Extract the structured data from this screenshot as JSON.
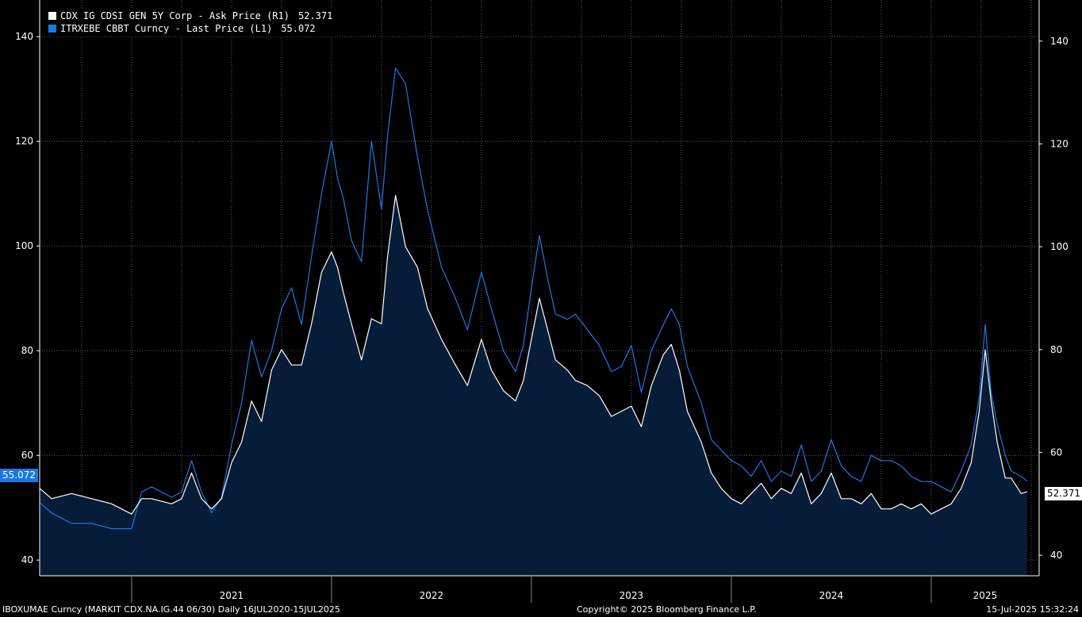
{
  "legend": [
    {
      "label": "CDX IG CDSI GEN 5Y Corp - Ask Price (R1)",
      "value": "52.371",
      "color": "#ffffff"
    },
    {
      "label": "ITRXEBE CBBT Curncy - Last Price (L1)",
      "value": "55.072",
      "color": "#1a77e8"
    }
  ],
  "badges": {
    "left": "55.072",
    "right": "52.371"
  },
  "footer": {
    "left": "IBOXUMAE Curncy (MARKIT CDX.NA.IG.44 06/30)  Daily 16JUL2020-15JUL2025",
    "center": "Copyright© 2025 Bloomberg Finance L.P.",
    "right": "15-Jul-2025 15:32:24"
  },
  "chart_data": {
    "type": "line",
    "x_range": [
      2020.54,
      2025.54
    ],
    "year_labels": [
      "2021",
      "2022",
      "2023",
      "2024",
      "2025"
    ],
    "y_left": {
      "range": [
        37,
        147
      ],
      "ticks": [
        40,
        60,
        80,
        100,
        120,
        140
      ],
      "labels": [
        "40",
        "60",
        "80",
        "100",
        "120",
        "140"
      ]
    },
    "y_right": {
      "range": [
        36,
        148
      ],
      "ticks": [
        40,
        60,
        80,
        100,
        120,
        140
      ],
      "labels": [
        "40",
        "60",
        "80",
        "100",
        "120",
        "140"
      ]
    },
    "series": [
      {
        "name": "ITRXEBE CBBT Curncy - Last Price (L1)",
        "axis": "left",
        "color": "#1a77e8",
        "points": [
          [
            2020.54,
            51
          ],
          [
            2020.6,
            49
          ],
          [
            2020.7,
            47
          ],
          [
            2020.8,
            47
          ],
          [
            2020.9,
            46
          ],
          [
            2021.0,
            46
          ],
          [
            2021.05,
            53
          ],
          [
            2021.1,
            54
          ],
          [
            2021.2,
            52
          ],
          [
            2021.25,
            53
          ],
          [
            2021.3,
            59
          ],
          [
            2021.35,
            53
          ],
          [
            2021.4,
            49
          ],
          [
            2021.45,
            52
          ],
          [
            2021.5,
            62
          ],
          [
            2021.55,
            70
          ],
          [
            2021.6,
            82
          ],
          [
            2021.65,
            75
          ],
          [
            2021.7,
            80
          ],
          [
            2021.75,
            88
          ],
          [
            2021.8,
            92
          ],
          [
            2021.85,
            85
          ],
          [
            2021.9,
            98
          ],
          [
            2021.95,
            110
          ],
          [
            2022.0,
            120
          ],
          [
            2022.03,
            113
          ],
          [
            2022.06,
            109
          ],
          [
            2022.1,
            101
          ],
          [
            2022.15,
            97
          ],
          [
            2022.2,
            120
          ],
          [
            2022.25,
            107
          ],
          [
            2022.28,
            121
          ],
          [
            2022.32,
            134
          ],
          [
            2022.37,
            131
          ],
          [
            2022.43,
            117
          ],
          [
            2022.48,
            107
          ],
          [
            2022.55,
            96
          ],
          [
            2022.62,
            90
          ],
          [
            2022.68,
            84
          ],
          [
            2022.75,
            95
          ],
          [
            2022.8,
            88
          ],
          [
            2022.86,
            80
          ],
          [
            2022.92,
            76
          ],
          [
            2022.96,
            81
          ],
          [
            2023.0,
            92
          ],
          [
            2023.04,
            102
          ],
          [
            2023.08,
            94
          ],
          [
            2023.12,
            87
          ],
          [
            2023.18,
            86
          ],
          [
            2023.22,
            87
          ],
          [
            2023.28,
            84
          ],
          [
            2023.34,
            81
          ],
          [
            2023.4,
            76
          ],
          [
            2023.45,
            77
          ],
          [
            2023.5,
            81
          ],
          [
            2023.55,
            72
          ],
          [
            2023.6,
            80
          ],
          [
            2023.66,
            85
          ],
          [
            2023.7,
            88
          ],
          [
            2023.74,
            85
          ],
          [
            2023.78,
            77
          ],
          [
            2023.85,
            70
          ],
          [
            2023.9,
            63
          ],
          [
            2023.95,
            61
          ],
          [
            2024.0,
            59
          ],
          [
            2024.05,
            58
          ],
          [
            2024.1,
            56
          ],
          [
            2024.15,
            59
          ],
          [
            2024.2,
            55
          ],
          [
            2024.25,
            57
          ],
          [
            2024.3,
            56
          ],
          [
            2024.35,
            62
          ],
          [
            2024.4,
            55
          ],
          [
            2024.45,
            57
          ],
          [
            2024.5,
            63
          ],
          [
            2024.55,
            58
          ],
          [
            2024.6,
            56
          ],
          [
            2024.65,
            55
          ],
          [
            2024.7,
            60
          ],
          [
            2024.75,
            59
          ],
          [
            2024.8,
            59
          ],
          [
            2024.85,
            58
          ],
          [
            2024.9,
            56
          ],
          [
            2024.95,
            55
          ],
          [
            2025.0,
            55
          ],
          [
            2025.05,
            54
          ],
          [
            2025.1,
            53
          ],
          [
            2025.15,
            57
          ],
          [
            2025.2,
            62
          ],
          [
            2025.24,
            71
          ],
          [
            2025.27,
            85
          ],
          [
            2025.3,
            72
          ],
          [
            2025.33,
            66
          ],
          [
            2025.37,
            60
          ],
          [
            2025.4,
            57
          ],
          [
            2025.45,
            56
          ],
          [
            2025.48,
            55.072
          ]
        ]
      },
      {
        "name": "CDX IG CDSI GEN 5Y Corp - Ask Price (R1)",
        "axis": "right",
        "color": "#ffffff",
        "points": [
          [
            2020.54,
            53
          ],
          [
            2020.6,
            51
          ],
          [
            2020.7,
            52
          ],
          [
            2020.8,
            51
          ],
          [
            2020.9,
            50
          ],
          [
            2021.0,
            48
          ],
          [
            2021.05,
            51
          ],
          [
            2021.1,
            51
          ],
          [
            2021.2,
            50
          ],
          [
            2021.25,
            51
          ],
          [
            2021.3,
            56
          ],
          [
            2021.35,
            51
          ],
          [
            2021.4,
            49
          ],
          [
            2021.45,
            51
          ],
          [
            2021.5,
            58
          ],
          [
            2021.55,
            62
          ],
          [
            2021.6,
            70
          ],
          [
            2021.65,
            66
          ],
          [
            2021.7,
            76
          ],
          [
            2021.75,
            80
          ],
          [
            2021.8,
            77
          ],
          [
            2021.85,
            77
          ],
          [
            2021.9,
            85
          ],
          [
            2021.95,
            95
          ],
          [
            2022.0,
            99
          ],
          [
            2022.03,
            96
          ],
          [
            2022.06,
            91
          ],
          [
            2022.1,
            85
          ],
          [
            2022.15,
            78
          ],
          [
            2022.2,
            86
          ],
          [
            2022.25,
            85
          ],
          [
            2022.28,
            98
          ],
          [
            2022.32,
            110
          ],
          [
            2022.37,
            100
          ],
          [
            2022.43,
            96
          ],
          [
            2022.48,
            88
          ],
          [
            2022.55,
            82
          ],
          [
            2022.62,
            77
          ],
          [
            2022.68,
            73
          ],
          [
            2022.75,
            82
          ],
          [
            2022.8,
            76
          ],
          [
            2022.86,
            72
          ],
          [
            2022.92,
            70
          ],
          [
            2022.96,
            74
          ],
          [
            2023.0,
            82
          ],
          [
            2023.04,
            90
          ],
          [
            2023.08,
            84
          ],
          [
            2023.12,
            78
          ],
          [
            2023.18,
            76
          ],
          [
            2023.22,
            74
          ],
          [
            2023.28,
            73
          ],
          [
            2023.34,
            71
          ],
          [
            2023.4,
            67
          ],
          [
            2023.45,
            68
          ],
          [
            2023.5,
            69
          ],
          [
            2023.55,
            65
          ],
          [
            2023.6,
            73
          ],
          [
            2023.66,
            79
          ],
          [
            2023.7,
            81
          ],
          [
            2023.74,
            76
          ],
          [
            2023.78,
            68
          ],
          [
            2023.85,
            62
          ],
          [
            2023.9,
            56
          ],
          [
            2023.95,
            53
          ],
          [
            2024.0,
            51
          ],
          [
            2024.05,
            50
          ],
          [
            2024.1,
            52
          ],
          [
            2024.15,
            54
          ],
          [
            2024.2,
            51
          ],
          [
            2024.25,
            53
          ],
          [
            2024.3,
            52
          ],
          [
            2024.35,
            56
          ],
          [
            2024.4,
            50
          ],
          [
            2024.45,
            52
          ],
          [
            2024.5,
            56
          ],
          [
            2024.55,
            51
          ],
          [
            2024.6,
            51
          ],
          [
            2024.65,
            50
          ],
          [
            2024.7,
            52
          ],
          [
            2024.75,
            49
          ],
          [
            2024.8,
            49
          ],
          [
            2024.85,
            50
          ],
          [
            2024.9,
            49
          ],
          [
            2024.95,
            50
          ],
          [
            2025.0,
            48
          ],
          [
            2025.05,
            49
          ],
          [
            2025.1,
            50
          ],
          [
            2025.15,
            53
          ],
          [
            2025.2,
            58
          ],
          [
            2025.24,
            68
          ],
          [
            2025.27,
            80
          ],
          [
            2025.3,
            70
          ],
          [
            2025.33,
            62
          ],
          [
            2025.37,
            55
          ],
          [
            2025.4,
            55
          ],
          [
            2025.45,
            52
          ],
          [
            2025.48,
            52.371
          ]
        ]
      }
    ]
  }
}
